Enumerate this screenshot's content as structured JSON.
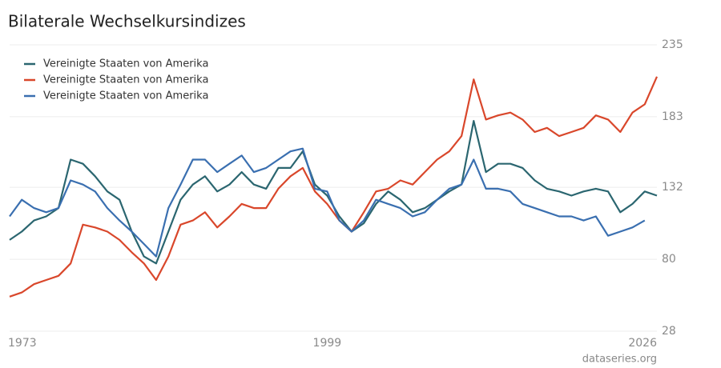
{
  "chart_data": {
    "type": "line",
    "title": "Bilaterale Wechselkursindizes",
    "source": "dataseries.org",
    "x": [
      1973,
      1974,
      1975,
      1976,
      1977,
      1978,
      1979,
      1980,
      1981,
      1982,
      1983,
      1984,
      1985,
      1986,
      1987,
      1988,
      1989,
      1990,
      1991,
      1992,
      1993,
      1994,
      1995,
      1996,
      1997,
      1998,
      1999,
      2000,
      2001,
      2002,
      2003,
      2004,
      2005,
      2006,
      2007,
      2008,
      2009,
      2010,
      2011,
      2012,
      2013,
      2014,
      2015,
      2016,
      2017,
      2018,
      2019,
      2020,
      2021,
      2022,
      2023,
      2024,
      2025,
      2026
    ],
    "series": [
      {
        "name": "Vereinigte Staaten von Amerika",
        "color": "#2b6670",
        "values": [
          94,
          100,
          108,
          111,
          117,
          152,
          149,
          140,
          129,
          123,
          100,
          82,
          77,
          100,
          123,
          134,
          140,
          129,
          134,
          143,
          134,
          131,
          146,
          146,
          158,
          134,
          126,
          111,
          100,
          106,
          120,
          129,
          123,
          114,
          117,
          123,
          129,
          134,
          180,
          143,
          149,
          149,
          146,
          137,
          131,
          129,
          126,
          129,
          131,
          129,
          114,
          120,
          129,
          126
        ]
      },
      {
        "name": "Vereinigte Staaten von Amerika",
        "color": "#d9472b",
        "values": [
          53,
          56,
          62,
          65,
          68,
          77,
          105,
          103,
          100,
          94,
          85,
          77,
          65,
          82,
          105,
          108,
          114,
          103,
          111,
          120,
          117,
          117,
          131,
          140,
          146,
          129,
          120,
          108,
          100,
          114,
          129,
          131,
          137,
          134,
          143,
          152,
          158,
          169,
          210,
          181,
          184,
          186,
          181,
          172,
          175,
          169,
          172,
          175,
          184,
          181,
          172,
          186,
          192,
          212
        ]
      },
      {
        "name": "Vereinigte Staaten von Amerika",
        "color": "#3a6fb0",
        "values": [
          111,
          123,
          117,
          114,
          117,
          137,
          134,
          129,
          117,
          108,
          100,
          91,
          82,
          117,
          134,
          152,
          152,
          143,
          149,
          155,
          143,
          146,
          152,
          158,
          160,
          131,
          129,
          108,
          100,
          108,
          123,
          120,
          117,
          111,
          114,
          123,
          131,
          134,
          152,
          131,
          131,
          129,
          120,
          117,
          114,
          111,
          111,
          108,
          111,
          97,
          100,
          103,
          108,
          null
        ]
      }
    ],
    "xlim": [
      1973,
      2026
    ],
    "xticks": [
      1973,
      1999,
      2026
    ],
    "ylim": [
      28,
      235
    ],
    "yticks": [
      28,
      80,
      132,
      183,
      235
    ],
    "grid": true,
    "legend": "top-left"
  }
}
